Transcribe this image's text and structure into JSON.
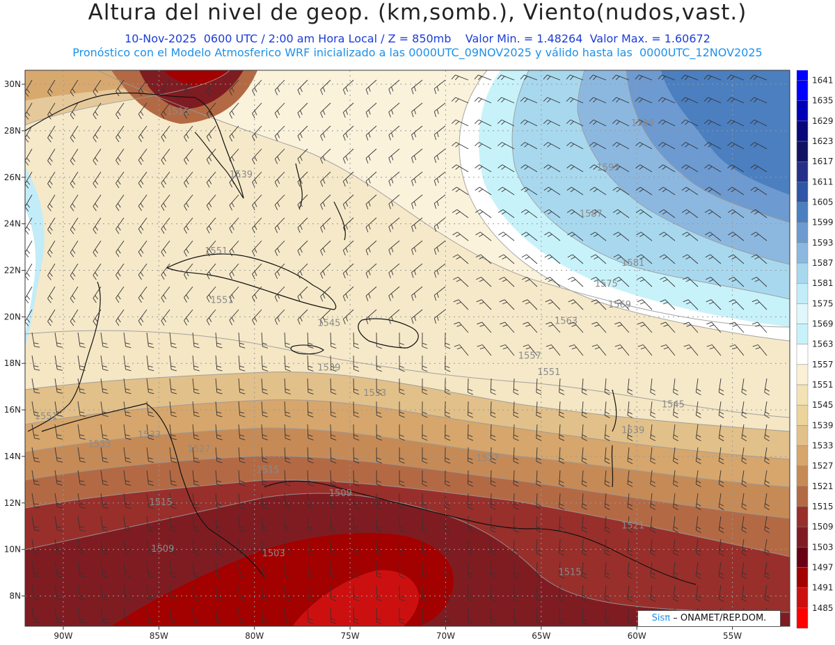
{
  "title": "Altura del nivel de geop. (km,somb.), Viento(nudos,vast.)",
  "subtitle_line1": "10-Nov-2025  0600 UTC / 2:00 am Hora Local / Z = 850mb    Valor Min. = 1.48264  Valor Max. = 1.60672",
  "subtitle_line2": "Pronóstico con el Modelo Atmosferico WRF inicializado a las 0000UTC_09NOV2025 y válido hasta las  0000UTC_12NOV2025",
  "credit": {
    "logo_text": "Sisπ",
    "org_text": "– ONAMET/REP.DOM."
  },
  "map": {
    "lon_range": [
      -92,
      -52
    ],
    "lat_range": [
      6.7,
      30.6
    ],
    "lon_ticks": [
      {
        "value": -90,
        "label": "90W"
      },
      {
        "value": -85,
        "label": "85W"
      },
      {
        "value": -80,
        "label": "80W"
      },
      {
        "value": -75,
        "label": "75W"
      },
      {
        "value": -70,
        "label": "70W"
      },
      {
        "value": -65,
        "label": "65W"
      },
      {
        "value": -60,
        "label": "60W"
      },
      {
        "value": -55,
        "label": "55W"
      }
    ],
    "lat_ticks": [
      {
        "value": 8,
        "label": "8N"
      },
      {
        "value": 10,
        "label": "10N"
      },
      {
        "value": 12,
        "label": "12N"
      },
      {
        "value": 14,
        "label": "14N"
      },
      {
        "value": 16,
        "label": "16N"
      },
      {
        "value": 18,
        "label": "18N"
      },
      {
        "value": 20,
        "label": "20N"
      },
      {
        "value": 22,
        "label": "22N"
      },
      {
        "value": 24,
        "label": "24N"
      },
      {
        "value": 26,
        "label": "26N"
      },
      {
        "value": 28,
        "label": "28N"
      },
      {
        "value": 30,
        "label": "30N"
      }
    ],
    "contour_labels": [
      {
        "text": "1515",
        "lon": -84.0,
        "lat": 28.7
      },
      {
        "text": "1539",
        "lon": -80.7,
        "lat": 26.0
      },
      {
        "text": "1551",
        "lon": -82.0,
        "lat": 22.7
      },
      {
        "text": "1551",
        "lon": -81.7,
        "lat": 20.6
      },
      {
        "text": "1545",
        "lon": -76.1,
        "lat": 19.6
      },
      {
        "text": "1539",
        "lon": -76.1,
        "lat": 17.7
      },
      {
        "text": "1533",
        "lon": -73.7,
        "lat": 16.6
      },
      {
        "text": "1551",
        "lon": -90.9,
        "lat": 15.6
      },
      {
        "text": "1533",
        "lon": -88.1,
        "lat": 14.4
      },
      {
        "text": "1533",
        "lon": -85.5,
        "lat": 14.8
      },
      {
        "text": "1527",
        "lon": -82.9,
        "lat": 14.2
      },
      {
        "text": "1515",
        "lon": -79.3,
        "lat": 13.3
      },
      {
        "text": "1509",
        "lon": -75.5,
        "lat": 12.3
      },
      {
        "text": "1515",
        "lon": -84.9,
        "lat": 11.9
      },
      {
        "text": "1509",
        "lon": -84.8,
        "lat": 9.9
      },
      {
        "text": "1503",
        "lon": -79.0,
        "lat": 9.7
      },
      {
        "text": "1527",
        "lon": -67.8,
        "lat": 13.8
      },
      {
        "text": "1521",
        "lon": -60.2,
        "lat": 10.9
      },
      {
        "text": "1515",
        "lon": -63.5,
        "lat": 8.9
      },
      {
        "text": "1545",
        "lon": -58.1,
        "lat": 16.1
      },
      {
        "text": "1539",
        "lon": -60.2,
        "lat": 15.0
      },
      {
        "text": "1551",
        "lon": -64.6,
        "lat": 17.5
      },
      {
        "text": "1557",
        "lon": -65.6,
        "lat": 18.2
      },
      {
        "text": "1563",
        "lon": -63.7,
        "lat": 19.7
      },
      {
        "text": "1569",
        "lon": -60.9,
        "lat": 20.4
      },
      {
        "text": "1575",
        "lon": -61.6,
        "lat": 21.3
      },
      {
        "text": "1581",
        "lon": -60.2,
        "lat": 22.2
      },
      {
        "text": "1587",
        "lon": -62.4,
        "lat": 24.3
      },
      {
        "text": "1593",
        "lon": -61.5,
        "lat": 26.3
      },
      {
        "text": "1599",
        "lon": -59.7,
        "lat": 28.2
      }
    ]
  },
  "legend": {
    "levels": [
      "1641",
      "1635",
      "1629",
      "1623",
      "1617",
      "1611",
      "1605",
      "1599",
      "1593",
      "1587",
      "1581",
      "1575",
      "1569",
      "1563",
      "1557",
      "1551",
      "1545",
      "1539",
      "1533",
      "1527",
      "1521",
      "1515",
      "1509",
      "1503",
      "1497",
      "1491",
      "1485"
    ],
    "colors": [
      "#0000ff",
      "#0000b8",
      "#08087a",
      "#121264",
      "#243088",
      "#2f55a6",
      "#4b7fc0",
      "#6d9ad0",
      "#8cb8e0",
      "#a8d8ee",
      "#c2ecf8",
      "#dff6fb",
      "#c8f2fa",
      "#ffffff",
      "#f9f0d6",
      "#f2e2b4",
      "#ecd39c",
      "#e2c089",
      "#d6a66c",
      "#c68a56",
      "#b36a44",
      "#982f2b",
      "#7f1c22",
      "#6a0014",
      "#a30000",
      "#cc1010",
      "#ff0000"
    ],
    "top_color": "#0000ff"
  }
}
